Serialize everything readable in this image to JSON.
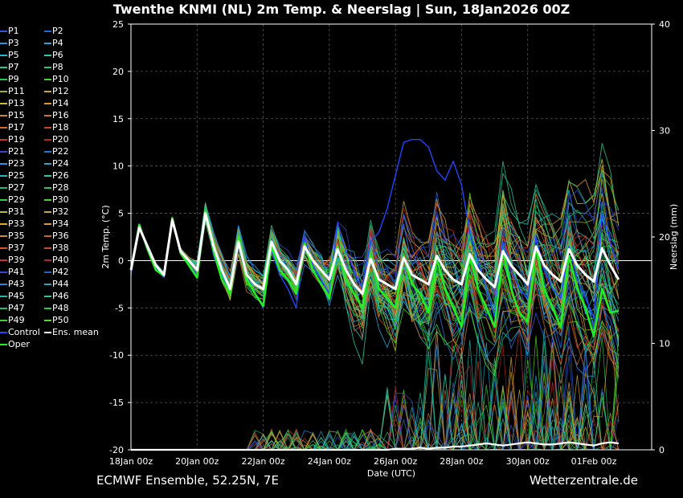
{
  "title": "Twenthe KNMI  (NL)  2m Temp. & Neerslag | Sun, 18Jan2026 00Z",
  "footer": {
    "left": "ECMWF Ensemble, 52.25N, 7E",
    "right": "Wetterzentrale.de"
  },
  "colors": {
    "background": "#000000",
    "mean": "#ffffff",
    "oper": "#22ee22",
    "control": "#2244ff"
  },
  "legend": [
    {
      "label": "P1",
      "color": "#3355dd"
    },
    {
      "label": "P2",
      "color": "#2266ee"
    },
    {
      "label": "P3",
      "color": "#2299dd"
    },
    {
      "label": "P4",
      "color": "#22aadd"
    },
    {
      "label": "P5",
      "color": "#22bbcc"
    },
    {
      "label": "P6",
      "color": "#22ccaa"
    },
    {
      "label": "P7",
      "color": "#22cc99"
    },
    {
      "label": "P8",
      "color": "#22cc77"
    },
    {
      "label": "P9",
      "color": "#22cc55"
    },
    {
      "label": "P10",
      "color": "#33dd22"
    },
    {
      "label": "P11",
      "color": "#aaaa33"
    },
    {
      "label": "P12",
      "color": "#ccaa22"
    },
    {
      "label": "P13",
      "color": "#ccbb33"
    },
    {
      "label": "P14",
      "color": "#dd9922"
    },
    {
      "label": "P15",
      "color": "#cc8833"
    },
    {
      "label": "P16",
      "color": "#cc7733"
    },
    {
      "label": "P17",
      "color": "#dd6622"
    },
    {
      "label": "P18",
      "color": "#cc4422"
    },
    {
      "label": "P19",
      "color": "#cc3322"
    },
    {
      "label": "P20",
      "color": "#bb2222"
    },
    {
      "label": "P21",
      "color": "#3344cc"
    },
    {
      "label": "P22",
      "color": "#2277dd"
    },
    {
      "label": "P23",
      "color": "#2299ee"
    },
    {
      "label": "P24",
      "color": "#22aacc"
    },
    {
      "label": "P25",
      "color": "#22bbbb"
    },
    {
      "label": "P26",
      "color": "#22ccaa"
    },
    {
      "label": "P27",
      "color": "#22bb88"
    },
    {
      "label": "P28",
      "color": "#22cc66"
    },
    {
      "label": "P29",
      "color": "#33cc44"
    },
    {
      "label": "P30",
      "color": "#44dd22"
    },
    {
      "label": "P31",
      "color": "#bbbb33"
    },
    {
      "label": "P32",
      "color": "#ccaa33"
    },
    {
      "label": "P33",
      "color": "#ddaa22"
    },
    {
      "label": "P34",
      "color": "#dd9933"
    },
    {
      "label": "P35",
      "color": "#cc8844"
    },
    {
      "label": "P36",
      "color": "#cc6633"
    },
    {
      "label": "P37",
      "color": "#dd5522"
    },
    {
      "label": "P38",
      "color": "#cc4433"
    },
    {
      "label": "P39",
      "color": "#cc3333"
    },
    {
      "label": "P40",
      "color": "#bb2233"
    },
    {
      "label": "P41",
      "color": "#3344dd"
    },
    {
      "label": "P42",
      "color": "#2266cc"
    },
    {
      "label": "P43",
      "color": "#2288dd"
    },
    {
      "label": "P44",
      "color": "#22aabb"
    },
    {
      "label": "P45",
      "color": "#22bbaa"
    },
    {
      "label": "P46",
      "color": "#22cc99"
    },
    {
      "label": "P47",
      "color": "#22bb77"
    },
    {
      "label": "P48",
      "color": "#22cc55"
    },
    {
      "label": "P49",
      "color": "#44cc33"
    },
    {
      "label": "P50",
      "color": "#55dd22"
    },
    {
      "label": "Control",
      "color": "#2244ff"
    },
    {
      "label": "Ens. mean",
      "color": "#ffffff"
    },
    {
      "label": "Oper",
      "color": "#22ee22"
    }
  ],
  "chart_data": {
    "type": "line",
    "xlabel": "Date (UTC)",
    "ylabel": "2m Temp. (°C)",
    "y2label": "Neerslag (mm)",
    "ylim": [
      -20,
      25
    ],
    "y2lim": [
      0,
      40
    ],
    "yticks": [
      -20,
      -15,
      -10,
      -5,
      0,
      5,
      10,
      15,
      20,
      25
    ],
    "y2ticks": [
      0,
      10,
      20,
      30,
      40
    ],
    "xlim": [
      "18Jan 00z",
      "02Feb 18z"
    ],
    "xticks": [
      "18Jan 00z",
      "20Jan 00z",
      "22Jan 00z",
      "24Jan 00z",
      "26Jan 00z",
      "28Jan 00z",
      "30Jan 00z",
      "01Feb 00z"
    ],
    "x_step_hours": 6,
    "grid": true,
    "legend_position": "left",
    "series": [
      {
        "name": "Ens. mean",
        "color": "#ffffff",
        "axis": "temp",
        "values": [
          -1,
          3.5,
          1.5,
          -0.5,
          -1.5,
          4.3,
          1,
          0,
          -1,
          5,
          1.5,
          -1,
          -3,
          2,
          -1.5,
          -2.5,
          -3,
          2,
          0,
          -1,
          -2.5,
          1.5,
          0,
          -1,
          -2,
          1.2,
          -1,
          -2.5,
          -3.5,
          0.2,
          -2,
          -2.5,
          -3,
          0.3,
          -1.5,
          -2,
          -2.5,
          0.5,
          -1,
          -2,
          -2.5,
          0.7,
          -1,
          -2,
          -2.8,
          1,
          -0.5,
          -1.5,
          -2.5,
          1.5,
          -0.5,
          -1.5,
          -2.2,
          1.2,
          -0.5,
          -1.5,
          -2.2,
          1.3,
          -0.5,
          -2
        ]
      },
      {
        "name": "Oper",
        "color": "#22ee22",
        "axis": "temp",
        "values": [
          -1,
          3.8,
          1.2,
          -1,
          -1.6,
          4.5,
          0.8,
          -0.5,
          -1.8,
          5.2,
          1,
          -2,
          -3.5,
          2.5,
          -2,
          -3.5,
          -4.8,
          1.5,
          -1,
          -2,
          -3.5,
          1.8,
          -1,
          -2.5,
          -4,
          1.5,
          -2,
          -3.5,
          -5,
          0.5,
          -3,
          -4,
          -5,
          0.5,
          -2.5,
          -3.5,
          -5.5,
          0.2,
          -3,
          -5,
          -7,
          0.5,
          -3,
          -5,
          -7,
          1,
          -3,
          -5.5,
          -6.5,
          1.5,
          -3,
          -5,
          -7,
          0.5,
          -3,
          -5,
          -8,
          -3,
          -5.5,
          -5.3
        ]
      },
      {
        "name": "Control",
        "color": "#2244ff",
        "axis": "temp",
        "values": [
          -1.5,
          3.6,
          1.3,
          -0.8,
          -1.8,
          4.4,
          0.8,
          -0.5,
          -1.5,
          5,
          0.5,
          -1.8,
          -3.5,
          1.5,
          -2,
          -3.5,
          -5,
          1,
          -1.5,
          -3,
          -5,
          2.5,
          -0.5,
          -2,
          -3.5,
          4,
          1,
          -1,
          -3,
          2,
          3,
          5.5,
          9,
          12.5,
          12.8,
          12.8,
          12,
          9.5,
          8.5,
          10.5,
          8,
          3,
          0,
          -3,
          -6,
          2,
          -1,
          -3,
          -4,
          2.5,
          -1,
          -3,
          -4,
          1.5,
          -2,
          -4,
          -6,
          5,
          2,
          -1
        ]
      },
      {
        "name": "Neerslag (mean)",
        "color": "#ffffff",
        "axis": "precip",
        "values": [
          0,
          0,
          0,
          0,
          0,
          0,
          0,
          0,
          0,
          0,
          0,
          0,
          0,
          0,
          0,
          0,
          0,
          0,
          0,
          0,
          0,
          0,
          0,
          0,
          0,
          0,
          0,
          0,
          0,
          0,
          0,
          0,
          0.1,
          0.1,
          0.1,
          0.2,
          0.1,
          0.2,
          0.2,
          0.3,
          0.3,
          0.4,
          0.5,
          0.6,
          0.5,
          0.4,
          0.5,
          0.6,
          0.7,
          0.6,
          0.5,
          0.5,
          0.6,
          0.7,
          0.6,
          0.5,
          0.4,
          0.6,
          0.7,
          0.6
        ]
      }
    ]
  }
}
